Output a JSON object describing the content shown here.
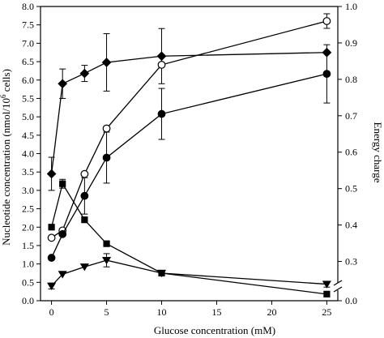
{
  "chart_data": {
    "type": "line",
    "title": "",
    "xlabel": "Glucose concentration (mM)",
    "ylabel": "Nucleotide concentration (nmol/10",
    "ylabel_sup": "6",
    "ylabel_tail": " cells)",
    "y2label": "Energy charge",
    "xlim": [
      -1,
      26
    ],
    "ylim": [
      0,
      8.0
    ],
    "y2lim_upper": [
      0.25,
      1.0
    ],
    "y2lim_lower": [
      0.0,
      0.0
    ],
    "x_ticks": [
      0,
      5,
      10,
      15,
      20,
      25
    ],
    "x_tick_labels": [
      "0",
      "5",
      "10",
      "15",
      "20",
      "25"
    ],
    "y_ticks": [
      0,
      0.5,
      1.0,
      1.5,
      2.0,
      2.5,
      3.0,
      3.5,
      4.0,
      4.5,
      5.0,
      5.5,
      6.0,
      6.5,
      7.0,
      7.5,
      8.0
    ],
    "y_tick_labels": [
      "0.0",
      "0.5",
      "1.0",
      "1.5",
      "2.0",
      "2.5",
      "3.0",
      "3.5",
      "4.0",
      "4.5",
      "5.0",
      "5.5",
      "6.0",
      "6.5",
      "7.0",
      "7.5",
      "8.0"
    ],
    "y2_ticks": [
      0.3,
      0.4,
      0.5,
      0.6,
      0.7,
      0.8,
      0.9,
      1.0
    ],
    "y2_tick_labels": [
      "0.3",
      "0.4",
      "0.5",
      "0.6",
      "0.7",
      "0.8",
      "0.9",
      "1.0"
    ],
    "y2_zero_label": "0.0",
    "grid": false,
    "series": [
      {
        "marker": "diamond",
        "fill": "#000000",
        "axis": "left",
        "x": [
          0,
          1,
          3,
          5,
          10,
          25
        ],
        "y": [
          3.45,
          5.9,
          6.18,
          6.48,
          6.65,
          6.75
        ],
        "err": [
          0.45,
          0.4,
          0.22,
          0.78,
          0.75,
          0.0
        ]
      },
      {
        "marker": "circle",
        "fill": "#ffffff",
        "axis": "right",
        "x": [
          0,
          1,
          3,
          5,
          10,
          25
        ],
        "y": [
          0.365,
          0.385,
          0.54,
          0.665,
          0.84,
          0.96
        ],
        "err": [
          0.0,
          0.0,
          0.0,
          0.0,
          0.0,
          0.02
        ]
      },
      {
        "marker": "circle",
        "fill": "#000000",
        "axis": "right",
        "x": [
          0,
          1,
          3,
          5,
          10,
          25
        ],
        "y": [
          0.31,
          0.375,
          0.48,
          0.585,
          0.705,
          0.815
        ],
        "err": [
          0.0,
          0.0,
          0.05,
          0.07,
          0.07,
          0.08
        ]
      },
      {
        "marker": "square",
        "fill": "#000000",
        "axis": "left",
        "x": [
          0,
          1,
          3,
          5,
          10,
          25
        ],
        "y": [
          2.0,
          3.18,
          2.2,
          1.55,
          0.75,
          0.18
        ],
        "err": [
          0.0,
          0.12,
          0.0,
          0.0,
          0.0,
          0.0
        ]
      },
      {
        "marker": "triangle-down",
        "fill": "#000000",
        "axis": "left",
        "x": [
          0,
          1,
          3,
          5,
          10,
          25
        ],
        "y": [
          0.4,
          0.72,
          0.92,
          1.1,
          0.75,
          0.45
        ],
        "err": [
          0.08,
          0.0,
          0.0,
          0.18,
          0.0,
          0.08
        ]
      }
    ]
  }
}
